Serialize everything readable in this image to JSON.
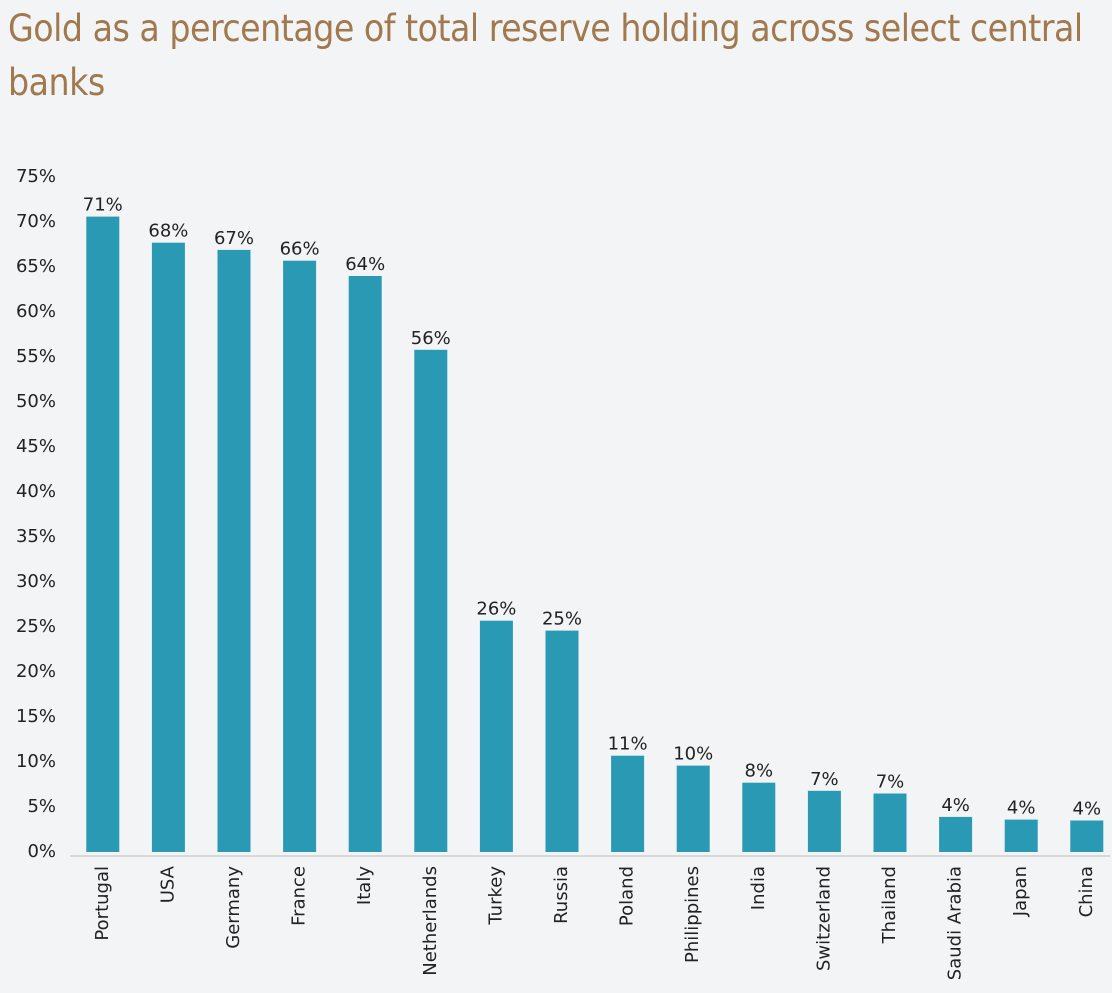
{
  "chart_data": {
    "type": "bar",
    "title": "Gold as a percentage of total reserve holding across select central banks",
    "categories": [
      "Portugal",
      "USA",
      "Germany",
      "France",
      "Italy",
      "Netherlands",
      "Turkey",
      "Russia",
      "Poland",
      "Philippines",
      "India",
      "Switzerland",
      "Thailand",
      "Saudi Arabia",
      "Japan",
      "China"
    ],
    "values": [
      70.6,
      67.7,
      66.9,
      65.7,
      64.0,
      55.8,
      25.7,
      24.6,
      10.7,
      9.6,
      7.7,
      6.8,
      6.5,
      3.9,
      3.6,
      3.5
    ],
    "value_labels": [
      "71%",
      "68%",
      "67%",
      "66%",
      "64%",
      "56%",
      "26%",
      "25%",
      "11%",
      "10%",
      "8%",
      "7%",
      "7%",
      "4%",
      "4%",
      "4%"
    ],
    "color": "#2a9ab4",
    "ylim": [
      0,
      75
    ],
    "yticks": [
      {
        "value": 0,
        "label": "0%"
      },
      {
        "value": 5,
        "label": "5%"
      },
      {
        "value": 10,
        "label": "10%"
      },
      {
        "value": 15,
        "label": "15%"
      },
      {
        "value": 20,
        "label": "20%"
      },
      {
        "value": 25,
        "label": "25%"
      },
      {
        "value": 30,
        "label": "30%"
      },
      {
        "value": 35,
        "label": "35%"
      },
      {
        "value": 40,
        "label": "40%"
      },
      {
        "value": 45,
        "label": "45%"
      },
      {
        "value": 50,
        "label": "50%"
      },
      {
        "value": 55,
        "label": "55%"
      },
      {
        "value": 60,
        "label": "60%"
      },
      {
        "value": 65,
        "label": "65%"
      },
      {
        "value": 70,
        "label": "70%"
      },
      {
        "value": 75,
        "label": "75%"
      }
    ],
    "grid": false
  }
}
